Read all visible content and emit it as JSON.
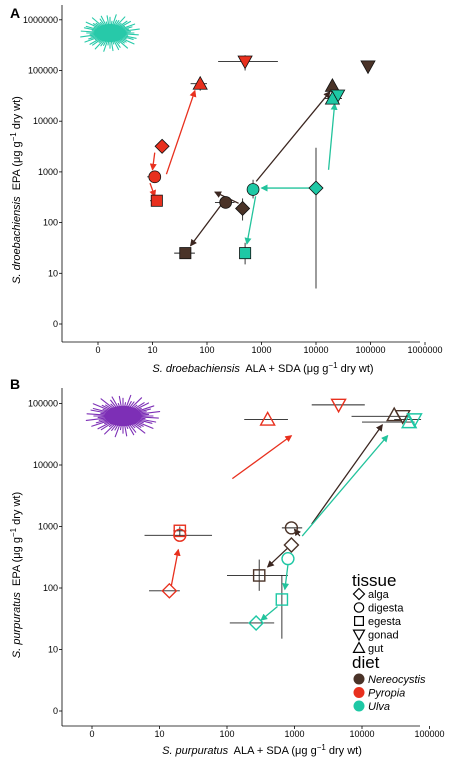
{
  "colors": {
    "Nereocystis": "#4a3328",
    "Pyropia": "#e8301e",
    "Ulva": "#1ec8a5",
    "Nereocystis_arrow": "#3b2620",
    "Pyropia_arrow": "#e8301e",
    "Ulva_arrow": "#22c39c",
    "urchin_A": "#27c9a9",
    "urchin_B": "#7d2fb6"
  },
  "chart_data": [
    {
      "type": "scatter",
      "panel": "A",
      "xlabel": {
        "species": "S. droebachiensis",
        "rest": "ALA + SDA (μg g",
        "sup": "−1",
        "tail": " dry wt)"
      },
      "ylabel": {
        "species": "S. droebachiensis",
        "rest": "EPA (μg g",
        "sup": "−1",
        "tail": " dry wt)"
      },
      "scale": "log",
      "xlim": [
        0,
        1000000
      ],
      "ylim": [
        0,
        1000000
      ],
      "x_ticks": [
        "0",
        "10",
        "100",
        "1000",
        "10000",
        "100000",
        "1000000"
      ],
      "y_ticks": [
        "0",
        "10",
        "100",
        "1000",
        "10000",
        "100000",
        "1000000"
      ],
      "grid": false,
      "points": [
        {
          "diet": "Pyropia",
          "tissue": "gonad",
          "x": 500,
          "y": 150000,
          "xerr": [
            160,
            2000
          ],
          "yerr": [
            100000,
            200000
          ]
        },
        {
          "diet": "Pyropia",
          "tissue": "gut",
          "x": 75,
          "y": 55000,
          "xerr": [
            50,
            100
          ],
          "yerr": [
            40000,
            75000
          ]
        },
        {
          "diet": "Pyropia",
          "tissue": "alga",
          "x": 15,
          "y": 3200
        },
        {
          "diet": "Pyropia",
          "tissue": "digesta",
          "x": 11,
          "y": 800,
          "xerr": [
            8,
            14
          ]
        },
        {
          "diet": "Pyropia",
          "tissue": "egesta",
          "x": 12,
          "y": 270,
          "xerr": [
            9,
            15
          ]
        },
        {
          "diet": "Nereocystis",
          "tissue": "gonad",
          "x": 90000,
          "y": 120000
        },
        {
          "diet": "Nereocystis",
          "tissue": "gut",
          "x": 20000,
          "y": 50000
        },
        {
          "diet": "Nereocystis",
          "tissue": "digesta",
          "x": 220,
          "y": 250,
          "xerr": [
            140,
            320
          ]
        },
        {
          "diet": "Nereocystis",
          "tissue": "alga",
          "x": 450,
          "y": 190,
          "yerr": [
            110,
            300
          ]
        },
        {
          "diet": "Nereocystis",
          "tissue": "egesta",
          "x": 40,
          "y": 25,
          "xerr": [
            25,
            60
          ]
        },
        {
          "diet": "Ulva",
          "tissue": "gonad",
          "x": 25000,
          "y": 32000
        },
        {
          "diet": "Ulva",
          "tissue": "gut",
          "x": 20000,
          "y": 28000,
          "xerr": [
            14000,
            30000
          ]
        },
        {
          "diet": "Ulva",
          "tissue": "digesta",
          "x": 700,
          "y": 450,
          "yerr": [
            300,
            700
          ]
        },
        {
          "diet": "Ulva",
          "tissue": "alga",
          "x": 10000,
          "y": 480,
          "yerr": [
            5,
            3000
          ]
        },
        {
          "diet": "Ulva",
          "tissue": "egesta",
          "x": 500,
          "y": 25,
          "yerr": [
            15,
            40
          ]
        }
      ],
      "arrows": [
        {
          "diet": "Pyropia",
          "from": [
            18,
            900
          ],
          "to": [
            60,
            40000
          ]
        },
        {
          "diet": "Pyropia",
          "from": [
            11,
            2400
          ],
          "to": [
            10,
            1100
          ]
        },
        {
          "diet": "Pyropia",
          "from": [
            9,
            600
          ],
          "to": [
            11,
            330
          ]
        },
        {
          "diet": "Nereocystis",
          "from": [
            800,
            650
          ],
          "to": [
            18000,
            38000
          ]
        },
        {
          "diet": "Nereocystis",
          "from": [
            180,
            220
          ],
          "to": [
            50,
            35
          ]
        },
        {
          "diet": "Nereocystis",
          "from": [
            380,
            240
          ],
          "to": [
            140,
            400
          ]
        },
        {
          "diet": "Ulva",
          "from": [
            17000,
            1100
          ],
          "to": [
            22000,
            22000
          ]
        },
        {
          "diet": "Ulva",
          "from": [
            8000,
            480
          ],
          "to": [
            1000,
            480
          ]
        },
        {
          "diet": "Ulva",
          "from": [
            780,
            330
          ],
          "to": [
            540,
            38
          ]
        }
      ]
    },
    {
      "type": "scatter",
      "panel": "B",
      "xlabel": {
        "species": "S. purpuratus",
        "rest": "ALA + SDA (μg g",
        "sup": "−1",
        "tail": " dry wt)"
      },
      "ylabel": {
        "species": "S. purpuratus",
        "rest": "EPA (μg g",
        "sup": "−1",
        "tail": " dry wt)"
      },
      "scale": "log",
      "xlim": [
        0,
        100000
      ],
      "ylim": [
        0,
        100000
      ],
      "x_ticks": [
        "0",
        "10",
        "100",
        "1000",
        "10000",
        "100000"
      ],
      "y_ticks": [
        "0",
        "10",
        "100",
        "1000",
        "10000",
        "100000"
      ],
      "grid": false,
      "points": [
        {
          "diet": "Pyropia",
          "tissue": "gonad",
          "x": 4500,
          "y": 95000,
          "xerr": [
            1800,
            11000
          ]
        },
        {
          "diet": "Pyropia",
          "tissue": "gut",
          "x": 400,
          "y": 55000,
          "xerr": [
            180,
            800
          ]
        },
        {
          "diet": "Pyropia",
          "tissue": "egesta",
          "x": 20,
          "y": 850,
          "xerr": [
            16,
            25
          ],
          "yerr": [
            700,
            1000
          ]
        },
        {
          "diet": "Pyropia",
          "tissue": "digesta",
          "x": 20,
          "y": 720,
          "xerr": [
            6,
            60
          ]
        },
        {
          "diet": "Pyropia",
          "tissue": "alga",
          "x": 14,
          "y": 90,
          "xerr": [
            7,
            20
          ]
        },
        {
          "diet": "Nereocystis",
          "tissue": "gonad",
          "x": 40000,
          "y": 62000,
          "xerr": [
            7000,
            50000
          ]
        },
        {
          "diet": "Nereocystis",
          "tissue": "gut",
          "x": 30000,
          "y": 65000
        },
        {
          "diet": "Nereocystis",
          "tissue": "digesta",
          "x": 900,
          "y": 950,
          "xerr": [
            650,
            1300
          ]
        },
        {
          "diet": "Nereocystis",
          "tissue": "alga",
          "x": 900,
          "y": 500
        },
        {
          "diet": "Nereocystis",
          "tissue": "egesta",
          "x": 300,
          "y": 160,
          "xerr": [
            100,
            800
          ],
          "yerr": [
            90,
            290
          ]
        },
        {
          "diet": "Ulva",
          "tissue": "gonad",
          "x": 60000,
          "y": 55000,
          "xerr": [
            30000,
            75000
          ]
        },
        {
          "diet": "Ulva",
          "tissue": "gut",
          "x": 50000,
          "y": 50000,
          "xerr": [
            10000,
            60000
          ]
        },
        {
          "diet": "Ulva",
          "tissue": "digesta",
          "x": 800,
          "y": 300
        },
        {
          "diet": "Ulva",
          "tissue": "egesta",
          "x": 650,
          "y": 65,
          "yerr": [
            15,
            160
          ]
        },
        {
          "diet": "Ulva",
          "tissue": "alga",
          "x": 270,
          "y": 27,
          "xerr": [
            110,
            500
          ]
        }
      ],
      "arrows": [
        {
          "diet": "Pyropia",
          "from": [
            120,
            6000
          ],
          "to": [
            900,
            30000
          ]
        },
        {
          "diet": "Pyropia",
          "from": [
            15,
            110
          ],
          "to": [
            19,
            420
          ]
        },
        {
          "diet": "Nereocystis",
          "from": [
            1800,
            1100
          ],
          "to": [
            20000,
            45000
          ]
        },
        {
          "diet": "Nereocystis",
          "from": [
            1200,
            700
          ],
          "to": [
            1000,
            900
          ]
        },
        {
          "diet": "Nereocystis",
          "from": [
            800,
            450
          ],
          "to": [
            400,
            220
          ]
        },
        {
          "diet": "Ulva",
          "from": [
            1300,
            700
          ],
          "to": [
            24000,
            30000
          ]
        },
        {
          "diet": "Ulva",
          "from": [
            800,
            240
          ],
          "to": [
            720,
            95
          ]
        },
        {
          "diet": "Ulva",
          "from": [
            560,
            50
          ],
          "to": [
            320,
            30
          ]
        }
      ]
    }
  ],
  "legend": {
    "tissue_title": "tissue",
    "tissue_items": [
      {
        "shape": "alga",
        "label": "alga"
      },
      {
        "shape": "digesta",
        "label": "digesta"
      },
      {
        "shape": "egesta",
        "label": "egesta"
      },
      {
        "shape": "gonad",
        "label": "gonad"
      },
      {
        "shape": "gut",
        "label": "gut"
      }
    ],
    "diet_title": "diet",
    "diet_items": [
      {
        "key": "Nereocystis",
        "label": "Nereocystis"
      },
      {
        "key": "Pyropia",
        "label": "Pyropia"
      },
      {
        "key": "Ulva",
        "label": "Ulva"
      }
    ]
  }
}
